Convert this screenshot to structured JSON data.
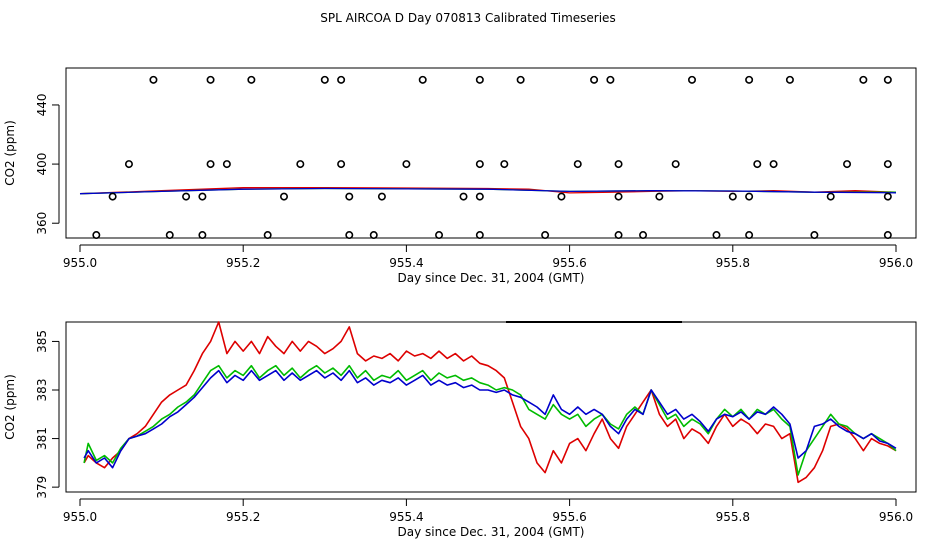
{
  "title": "SPL AIRCOA D  Day 070813  Calibrated Timeseries",
  "colors": {
    "red": "#dd0000",
    "green": "#00bb00",
    "blue": "#0000cc",
    "axis": "#000000"
  },
  "chart_data": [
    {
      "type": "scatter",
      "xlabel": "Day since Dec. 31, 2004 (GMT)",
      "ylabel": "CO2 (ppm)",
      "xlim": [
        955.0,
        956.0
      ],
      "ylim": [
        350,
        465
      ],
      "xticks": [
        955.0,
        955.2,
        955.4,
        955.6,
        955.8,
        956.0
      ],
      "xtick_labels": [
        "955.0",
        "955.2",
        "955.4",
        "955.6",
        "955.8",
        "956.0"
      ],
      "yticks": [
        360,
        400,
        440
      ],
      "ytick_labels": [
        "360",
        "400",
        "440"
      ],
      "flag_points": [
        {
          "x": 955.09,
          "y": 457
        },
        {
          "x": 955.16,
          "y": 457
        },
        {
          "x": 955.21,
          "y": 457
        },
        {
          "x": 955.3,
          "y": 457
        },
        {
          "x": 955.32,
          "y": 457
        },
        {
          "x": 955.42,
          "y": 457
        },
        {
          "x": 955.49,
          "y": 457
        },
        {
          "x": 955.54,
          "y": 457
        },
        {
          "x": 955.63,
          "y": 457
        },
        {
          "x": 955.65,
          "y": 457
        },
        {
          "x": 955.75,
          "y": 457
        },
        {
          "x": 955.82,
          "y": 457
        },
        {
          "x": 955.87,
          "y": 457
        },
        {
          "x": 955.96,
          "y": 457
        },
        {
          "x": 955.99,
          "y": 457
        },
        {
          "x": 955.06,
          "y": 400
        },
        {
          "x": 955.16,
          "y": 400
        },
        {
          "x": 955.18,
          "y": 400
        },
        {
          "x": 955.27,
          "y": 400
        },
        {
          "x": 955.32,
          "y": 400
        },
        {
          "x": 955.4,
          "y": 400
        },
        {
          "x": 955.49,
          "y": 400
        },
        {
          "x": 955.52,
          "y": 400
        },
        {
          "x": 955.61,
          "y": 400
        },
        {
          "x": 955.66,
          "y": 400
        },
        {
          "x": 955.73,
          "y": 400
        },
        {
          "x": 955.83,
          "y": 400
        },
        {
          "x": 955.85,
          "y": 400
        },
        {
          "x": 955.94,
          "y": 400
        },
        {
          "x": 955.99,
          "y": 400
        },
        {
          "x": 955.04,
          "y": 378
        },
        {
          "x": 955.13,
          "y": 378
        },
        {
          "x": 955.15,
          "y": 378
        },
        {
          "x": 955.25,
          "y": 378
        },
        {
          "x": 955.33,
          "y": 378
        },
        {
          "x": 955.37,
          "y": 378
        },
        {
          "x": 955.47,
          "y": 378
        },
        {
          "x": 955.49,
          "y": 378
        },
        {
          "x": 955.59,
          "y": 378
        },
        {
          "x": 955.66,
          "y": 378
        },
        {
          "x": 955.71,
          "y": 378
        },
        {
          "x": 955.8,
          "y": 378
        },
        {
          "x": 955.82,
          "y": 378
        },
        {
          "x": 955.92,
          "y": 378
        },
        {
          "x": 955.99,
          "y": 378
        },
        {
          "x": 955.02,
          "y": 352
        },
        {
          "x": 955.11,
          "y": 352
        },
        {
          "x": 955.15,
          "y": 352
        },
        {
          "x": 955.23,
          "y": 352
        },
        {
          "x": 955.33,
          "y": 352
        },
        {
          "x": 955.36,
          "y": 352
        },
        {
          "x": 955.44,
          "y": 352
        },
        {
          "x": 955.49,
          "y": 352
        },
        {
          "x": 955.57,
          "y": 352
        },
        {
          "x": 955.66,
          "y": 352
        },
        {
          "x": 955.69,
          "y": 352
        },
        {
          "x": 955.78,
          "y": 352
        },
        {
          "x": 955.82,
          "y": 352
        },
        {
          "x": 955.9,
          "y": 352
        },
        {
          "x": 955.99,
          "y": 352
        }
      ],
      "series": [
        {
          "name": "red",
          "x": [
            955.0,
            955.05,
            955.1,
            955.15,
            955.2,
            955.3,
            955.4,
            955.5,
            955.55,
            955.6,
            955.65,
            955.7,
            955.75,
            955.8,
            955.85,
            955.9,
            955.95,
            956.0
          ],
          "values": [
            380,
            381,
            382,
            383,
            384,
            384,
            383.8,
            383.5,
            383,
            380.5,
            381,
            381.5,
            382,
            381.5,
            382,
            381,
            382,
            381
          ]
        },
        {
          "name": "green",
          "x": [
            955.0,
            955.1,
            955.2,
            955.3,
            955.4,
            955.5,
            955.6,
            955.7,
            955.8,
            955.9,
            956.0
          ],
          "values": [
            380,
            381.5,
            383,
            383.5,
            383.2,
            383,
            381.5,
            382,
            381.8,
            381,
            381
          ]
        },
        {
          "name": "blue",
          "x": [
            955.0,
            955.1,
            955.2,
            955.3,
            955.4,
            955.5,
            955.6,
            955.7,
            955.8,
            955.9,
            956.0
          ],
          "values": [
            380,
            381.5,
            383,
            383.5,
            383.2,
            383,
            381.5,
            382,
            381.8,
            381,
            380.6
          ]
        }
      ]
    },
    {
      "type": "line",
      "xlabel": "Day since Dec. 31, 2004 (GMT)",
      "ylabel": "CO2 (ppm)",
      "xlim": [
        955.0,
        956.0
      ],
      "ylim": [
        378.8,
        385.8
      ],
      "xticks": [
        955.0,
        955.2,
        955.4,
        955.6,
        955.8,
        956.0
      ],
      "xtick_labels": [
        "955.0",
        "955.2",
        "955.4",
        "955.6",
        "955.8",
        "956.0"
      ],
      "yticks": [
        379,
        381,
        383,
        385
      ],
      "ytick_labels": [
        "379",
        "381",
        "383",
        "385"
      ],
      "series": [
        {
          "name": "red",
          "x": [
            955.005,
            955.01,
            955.02,
            955.03,
            955.04,
            955.05,
            955.06,
            955.07,
            955.08,
            955.09,
            955.1,
            955.11,
            955.12,
            955.13,
            955.14,
            955.15,
            955.16,
            955.17,
            955.18,
            955.19,
            955.2,
            955.21,
            955.22,
            955.23,
            955.24,
            955.25,
            955.26,
            955.27,
            955.28,
            955.29,
            955.3,
            955.31,
            955.32,
            955.33,
            955.34,
            955.35,
            955.36,
            955.37,
            955.38,
            955.39,
            955.4,
            955.41,
            955.42,
            955.43,
            955.44,
            955.45,
            955.46,
            955.47,
            955.48,
            955.49,
            955.5,
            955.51,
            955.52,
            955.53,
            955.54,
            955.55,
            955.56,
            955.57,
            955.58,
            955.59,
            955.6,
            955.61,
            955.62,
            955.63,
            955.64,
            955.65,
            955.66,
            955.67,
            955.68,
            955.69,
            955.7,
            955.71,
            955.72,
            955.73,
            955.74,
            955.75,
            955.76,
            955.77,
            955.78,
            955.79,
            955.8,
            955.81,
            955.82,
            955.83,
            955.84,
            955.85,
            955.86,
            955.87,
            955.88,
            955.89,
            955.9,
            955.91,
            955.92,
            955.93,
            955.94,
            955.95,
            955.96,
            955.97,
            955.98,
            955.99,
            956.0
          ],
          "values": [
            380.0,
            380.3,
            380.0,
            379.8,
            380.2,
            380.5,
            381.0,
            381.2,
            381.5,
            382.0,
            382.5,
            382.8,
            383.0,
            383.2,
            383.8,
            384.5,
            385.0,
            385.8,
            384.5,
            385.0,
            384.6,
            385.0,
            384.5,
            385.2,
            384.8,
            384.5,
            385.0,
            384.6,
            385.0,
            384.8,
            384.5,
            384.7,
            385.0,
            385.6,
            384.5,
            384.2,
            384.4,
            384.3,
            384.5,
            384.2,
            384.6,
            384.4,
            384.5,
            384.3,
            384.6,
            384.3,
            384.5,
            384.2,
            384.4,
            384.1,
            384.0,
            383.8,
            383.5,
            382.5,
            381.5,
            381.0,
            380.0,
            379.6,
            380.5,
            380.0,
            380.8,
            381.0,
            380.5,
            381.2,
            381.8,
            381.0,
            380.6,
            381.5,
            382.0,
            382.5,
            383.0,
            382.0,
            381.5,
            381.8,
            381.0,
            381.4,
            381.2,
            380.8,
            381.5,
            382.0,
            381.5,
            381.8,
            381.6,
            381.2,
            381.6,
            381.5,
            381.0,
            381.2,
            379.2,
            379.4,
            379.8,
            380.5,
            381.5,
            381.6,
            381.4,
            381.0,
            380.5,
            381.0,
            380.8,
            380.7,
            380.5
          ]
        },
        {
          "name": "green",
          "x": [
            955.005,
            955.01,
            955.02,
            955.03,
            955.04,
            955.05,
            955.06,
            955.07,
            955.08,
            955.09,
            955.1,
            955.11,
            955.12,
            955.13,
            955.14,
            955.15,
            955.16,
            955.17,
            955.18,
            955.19,
            955.2,
            955.21,
            955.22,
            955.23,
            955.24,
            955.25,
            955.26,
            955.27,
            955.28,
            955.29,
            955.3,
            955.31,
            955.32,
            955.33,
            955.34,
            955.35,
            955.36,
            955.37,
            955.38,
            955.39,
            955.4,
            955.41,
            955.42,
            955.43,
            955.44,
            955.45,
            955.46,
            955.47,
            955.48,
            955.49,
            955.5,
            955.51,
            955.52,
            955.53,
            955.54,
            955.55,
            955.56,
            955.57,
            955.58,
            955.59,
            955.6,
            955.61,
            955.62,
            955.63,
            955.64,
            955.65,
            955.66,
            955.67,
            955.68,
            955.69,
            955.7,
            955.71,
            955.72,
            955.73,
            955.74,
            955.75,
            955.76,
            955.77,
            955.78,
            955.79,
            955.8,
            955.81,
            955.82,
            955.83,
            955.84,
            955.85,
            955.86,
            955.87,
            955.88,
            955.89,
            955.9,
            955.91,
            955.92,
            955.93,
            955.94,
            955.95,
            955.96,
            955.97,
            955.98,
            955.99,
            956.0
          ],
          "values": [
            380.0,
            380.8,
            380.1,
            380.3,
            380.0,
            380.6,
            381.0,
            381.1,
            381.3,
            381.5,
            381.8,
            382.0,
            382.3,
            382.5,
            382.8,
            383.3,
            383.8,
            384.0,
            383.5,
            383.8,
            383.6,
            384.0,
            383.5,
            383.8,
            384.0,
            383.6,
            383.9,
            383.5,
            383.8,
            384.0,
            383.7,
            383.9,
            383.6,
            384.0,
            383.5,
            383.8,
            383.4,
            383.6,
            383.5,
            383.8,
            383.4,
            383.6,
            383.8,
            383.4,
            383.7,
            383.5,
            383.6,
            383.4,
            383.5,
            383.3,
            383.2,
            383.0,
            383.1,
            383.0,
            382.8,
            382.2,
            382.0,
            381.8,
            382.4,
            382.0,
            381.8,
            382.0,
            381.5,
            381.8,
            382.0,
            381.6,
            381.4,
            382.0,
            382.3,
            382.0,
            383.0,
            382.4,
            381.8,
            382.0,
            381.5,
            381.8,
            381.6,
            381.2,
            381.8,
            382.2,
            381.9,
            382.2,
            381.8,
            382.2,
            382.0,
            382.2,
            381.8,
            381.5,
            379.5,
            380.5,
            381.0,
            381.5,
            382.0,
            381.6,
            381.5,
            381.2,
            381.0,
            381.2,
            381.0,
            380.8,
            380.5
          ]
        },
        {
          "name": "blue",
          "x": [
            955.005,
            955.01,
            955.02,
            955.03,
            955.04,
            955.05,
            955.06,
            955.07,
            955.08,
            955.09,
            955.1,
            955.11,
            955.12,
            955.13,
            955.14,
            955.15,
            955.16,
            955.17,
            955.18,
            955.19,
            955.2,
            955.21,
            955.22,
            955.23,
            955.24,
            955.25,
            955.26,
            955.27,
            955.28,
            955.29,
            955.3,
            955.31,
            955.32,
            955.33,
            955.34,
            955.35,
            955.36,
            955.37,
            955.38,
            955.39,
            955.4,
            955.41,
            955.42,
            955.43,
            955.44,
            955.45,
            955.46,
            955.47,
            955.48,
            955.49,
            955.5,
            955.51,
            955.52,
            955.53,
            955.54,
            955.55,
            955.56,
            955.57,
            955.58,
            955.59,
            955.6,
            955.61,
            955.62,
            955.63,
            955.64,
            955.65,
            955.66,
            955.67,
            955.68,
            955.69,
            955.7,
            955.71,
            955.72,
            955.73,
            955.74,
            955.75,
            955.76,
            955.77,
            955.78,
            955.79,
            955.8,
            955.81,
            955.82,
            955.83,
            955.84,
            955.85,
            955.86,
            955.87,
            955.88,
            955.89,
            955.9,
            955.91,
            955.92,
            955.93,
            955.94,
            955.95,
            955.96,
            955.97,
            955.98,
            955.99,
            956.0
          ],
          "values": [
            380.2,
            380.5,
            380.0,
            380.2,
            379.8,
            380.5,
            381.0,
            381.1,
            381.2,
            381.4,
            381.6,
            381.9,
            382.1,
            382.4,
            382.7,
            383.1,
            383.5,
            383.8,
            383.3,
            383.6,
            383.4,
            383.8,
            383.4,
            383.6,
            383.8,
            383.4,
            383.7,
            383.4,
            383.6,
            383.8,
            383.5,
            383.7,
            383.4,
            383.8,
            383.3,
            383.5,
            383.2,
            383.4,
            383.3,
            383.5,
            383.2,
            383.4,
            383.6,
            383.2,
            383.4,
            383.2,
            383.3,
            383.1,
            383.2,
            383.0,
            383.0,
            382.9,
            383.0,
            382.8,
            382.7,
            382.5,
            382.3,
            382.0,
            382.8,
            382.2,
            382.0,
            382.3,
            382.0,
            382.2,
            382.0,
            381.5,
            381.2,
            381.8,
            382.2,
            382.0,
            383.0,
            382.5,
            382.0,
            382.2,
            381.8,
            382.0,
            381.7,
            381.3,
            381.8,
            382.0,
            381.9,
            382.1,
            381.8,
            382.1,
            382.0,
            382.3,
            382.0,
            381.6,
            380.2,
            380.5,
            381.5,
            381.6,
            381.8,
            381.5,
            381.3,
            381.2,
            381.0,
            381.2,
            380.9,
            380.8,
            380.6
          ]
        }
      ]
    }
  ]
}
